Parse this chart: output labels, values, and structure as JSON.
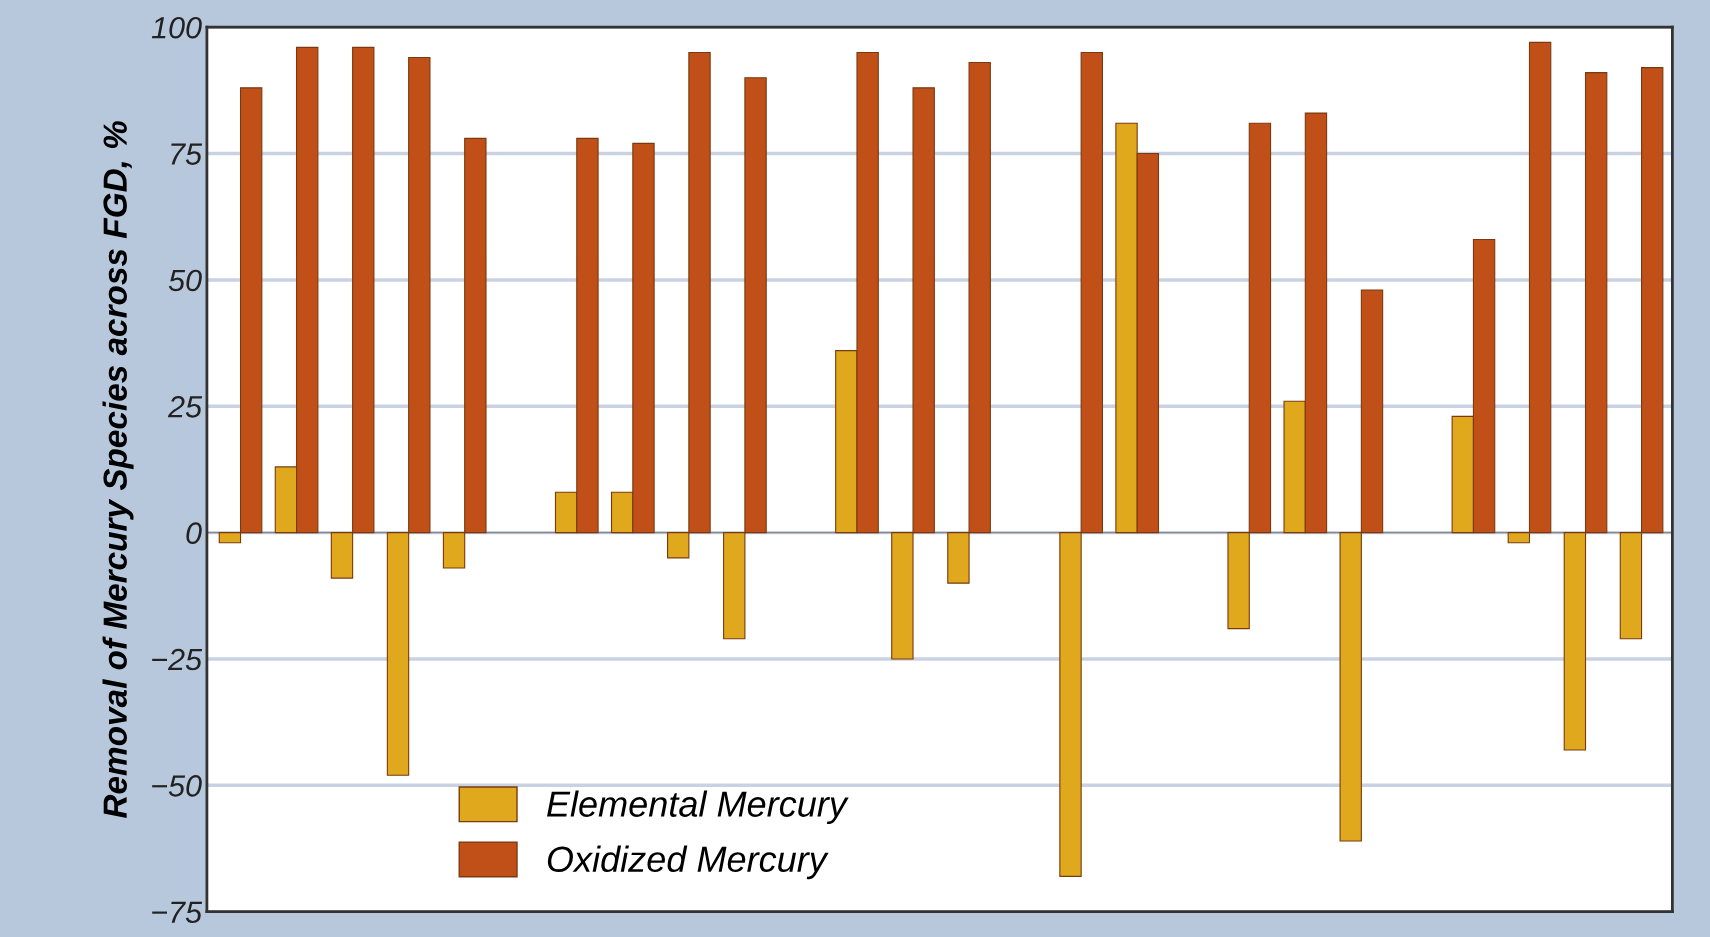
{
  "chart_data": {
    "type": "bar",
    "ylabel": "Removal of Mercury Species across FGD, %",
    "categories": [
      null,
      null,
      null,
      null,
      null,
      null,
      null,
      null,
      null,
      null,
      null,
      null,
      null,
      null,
      null,
      null,
      null,
      null,
      null,
      null,
      null,
      null,
      null,
      null,
      null,
      null
    ],
    "series": [
      {
        "name": "Elemental Mercury",
        "color": "#e0a81c",
        "values": [
          -2,
          13,
          -9,
          -48,
          -7,
          null,
          8,
          8,
          -5,
          -21,
          null,
          36,
          -25,
          -10,
          null,
          -68,
          81,
          null,
          -19,
          26,
          -61,
          null,
          23,
          -2,
          -43,
          -21
        ]
      },
      {
        "name": "Oxidized Mercury",
        "color": "#c04f18",
        "values": [
          88,
          96,
          96,
          94,
          78,
          null,
          78,
          77,
          95,
          90,
          null,
          95,
          88,
          93,
          null,
          95,
          75,
          null,
          81,
          83,
          48,
          null,
          58,
          97,
          91,
          92
        ]
      }
    ],
    "ylim": [
      -75,
      100
    ],
    "yticks": [
      {
        "value": -75,
        "label": "−75"
      },
      {
        "value": -50,
        "label": "−50"
      },
      {
        "value": -25,
        "label": "−25"
      },
      0,
      25,
      50,
      75,
      100
    ],
    "grid": "y",
    "legend": "bottom left",
    "tick_labels": "y"
  }
}
